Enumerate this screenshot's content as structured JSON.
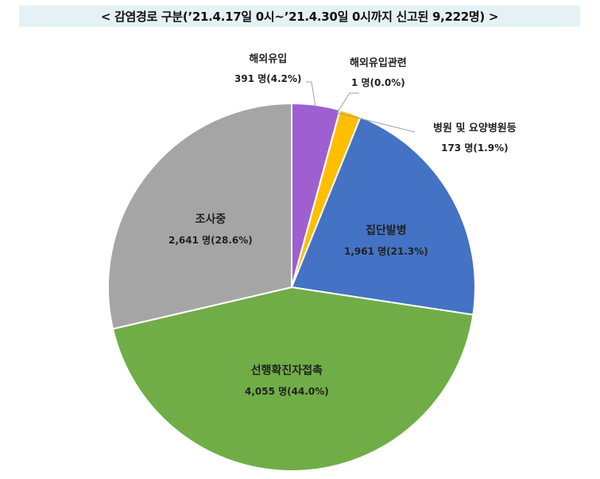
{
  "title": "< 감염경로 구분(’21.4.17일 0시~’21.4.30일 0시까지 신고된 9,222명) >",
  "chart_data": {
    "type": "pie",
    "title": "감염경로 구분(’21.4.17일 0시~’21.4.30일 0시까지 신고된 9,222명)",
    "total": 9222,
    "unit": "명",
    "categories": [
      "해외유입",
      "해외유입관련",
      "병원 및 요양병원등",
      "집단발병",
      "선행확진자접촉",
      "조사중"
    ],
    "values": [
      391,
      1,
      173,
      1961,
      4055,
      2641
    ],
    "percents": [
      4.2,
      0.0,
      1.9,
      21.3,
      44.0,
      28.6
    ],
    "colors": [
      "#9e5fd0",
      "#ffffff",
      "#ffbf00",
      "#4472c4",
      "#70ad47",
      "#a5a5a5"
    ],
    "legend": "none (data labels)"
  },
  "labels": [
    {
      "name": "해외유입",
      "value": "391 명(4.2%)"
    },
    {
      "name": "해외유입관련",
      "value": "1 명(0.0%)"
    },
    {
      "name": "병원 및 요양병원등",
      "value": "173 명(1.9%)"
    },
    {
      "name": "집단발병",
      "value": "1,961 명(21.3%)"
    },
    {
      "name": "선행확진자접촉",
      "value": "4,055 명(44.0%)"
    },
    {
      "name": "조사중",
      "value": "2,641 명(28.6%)"
    }
  ]
}
